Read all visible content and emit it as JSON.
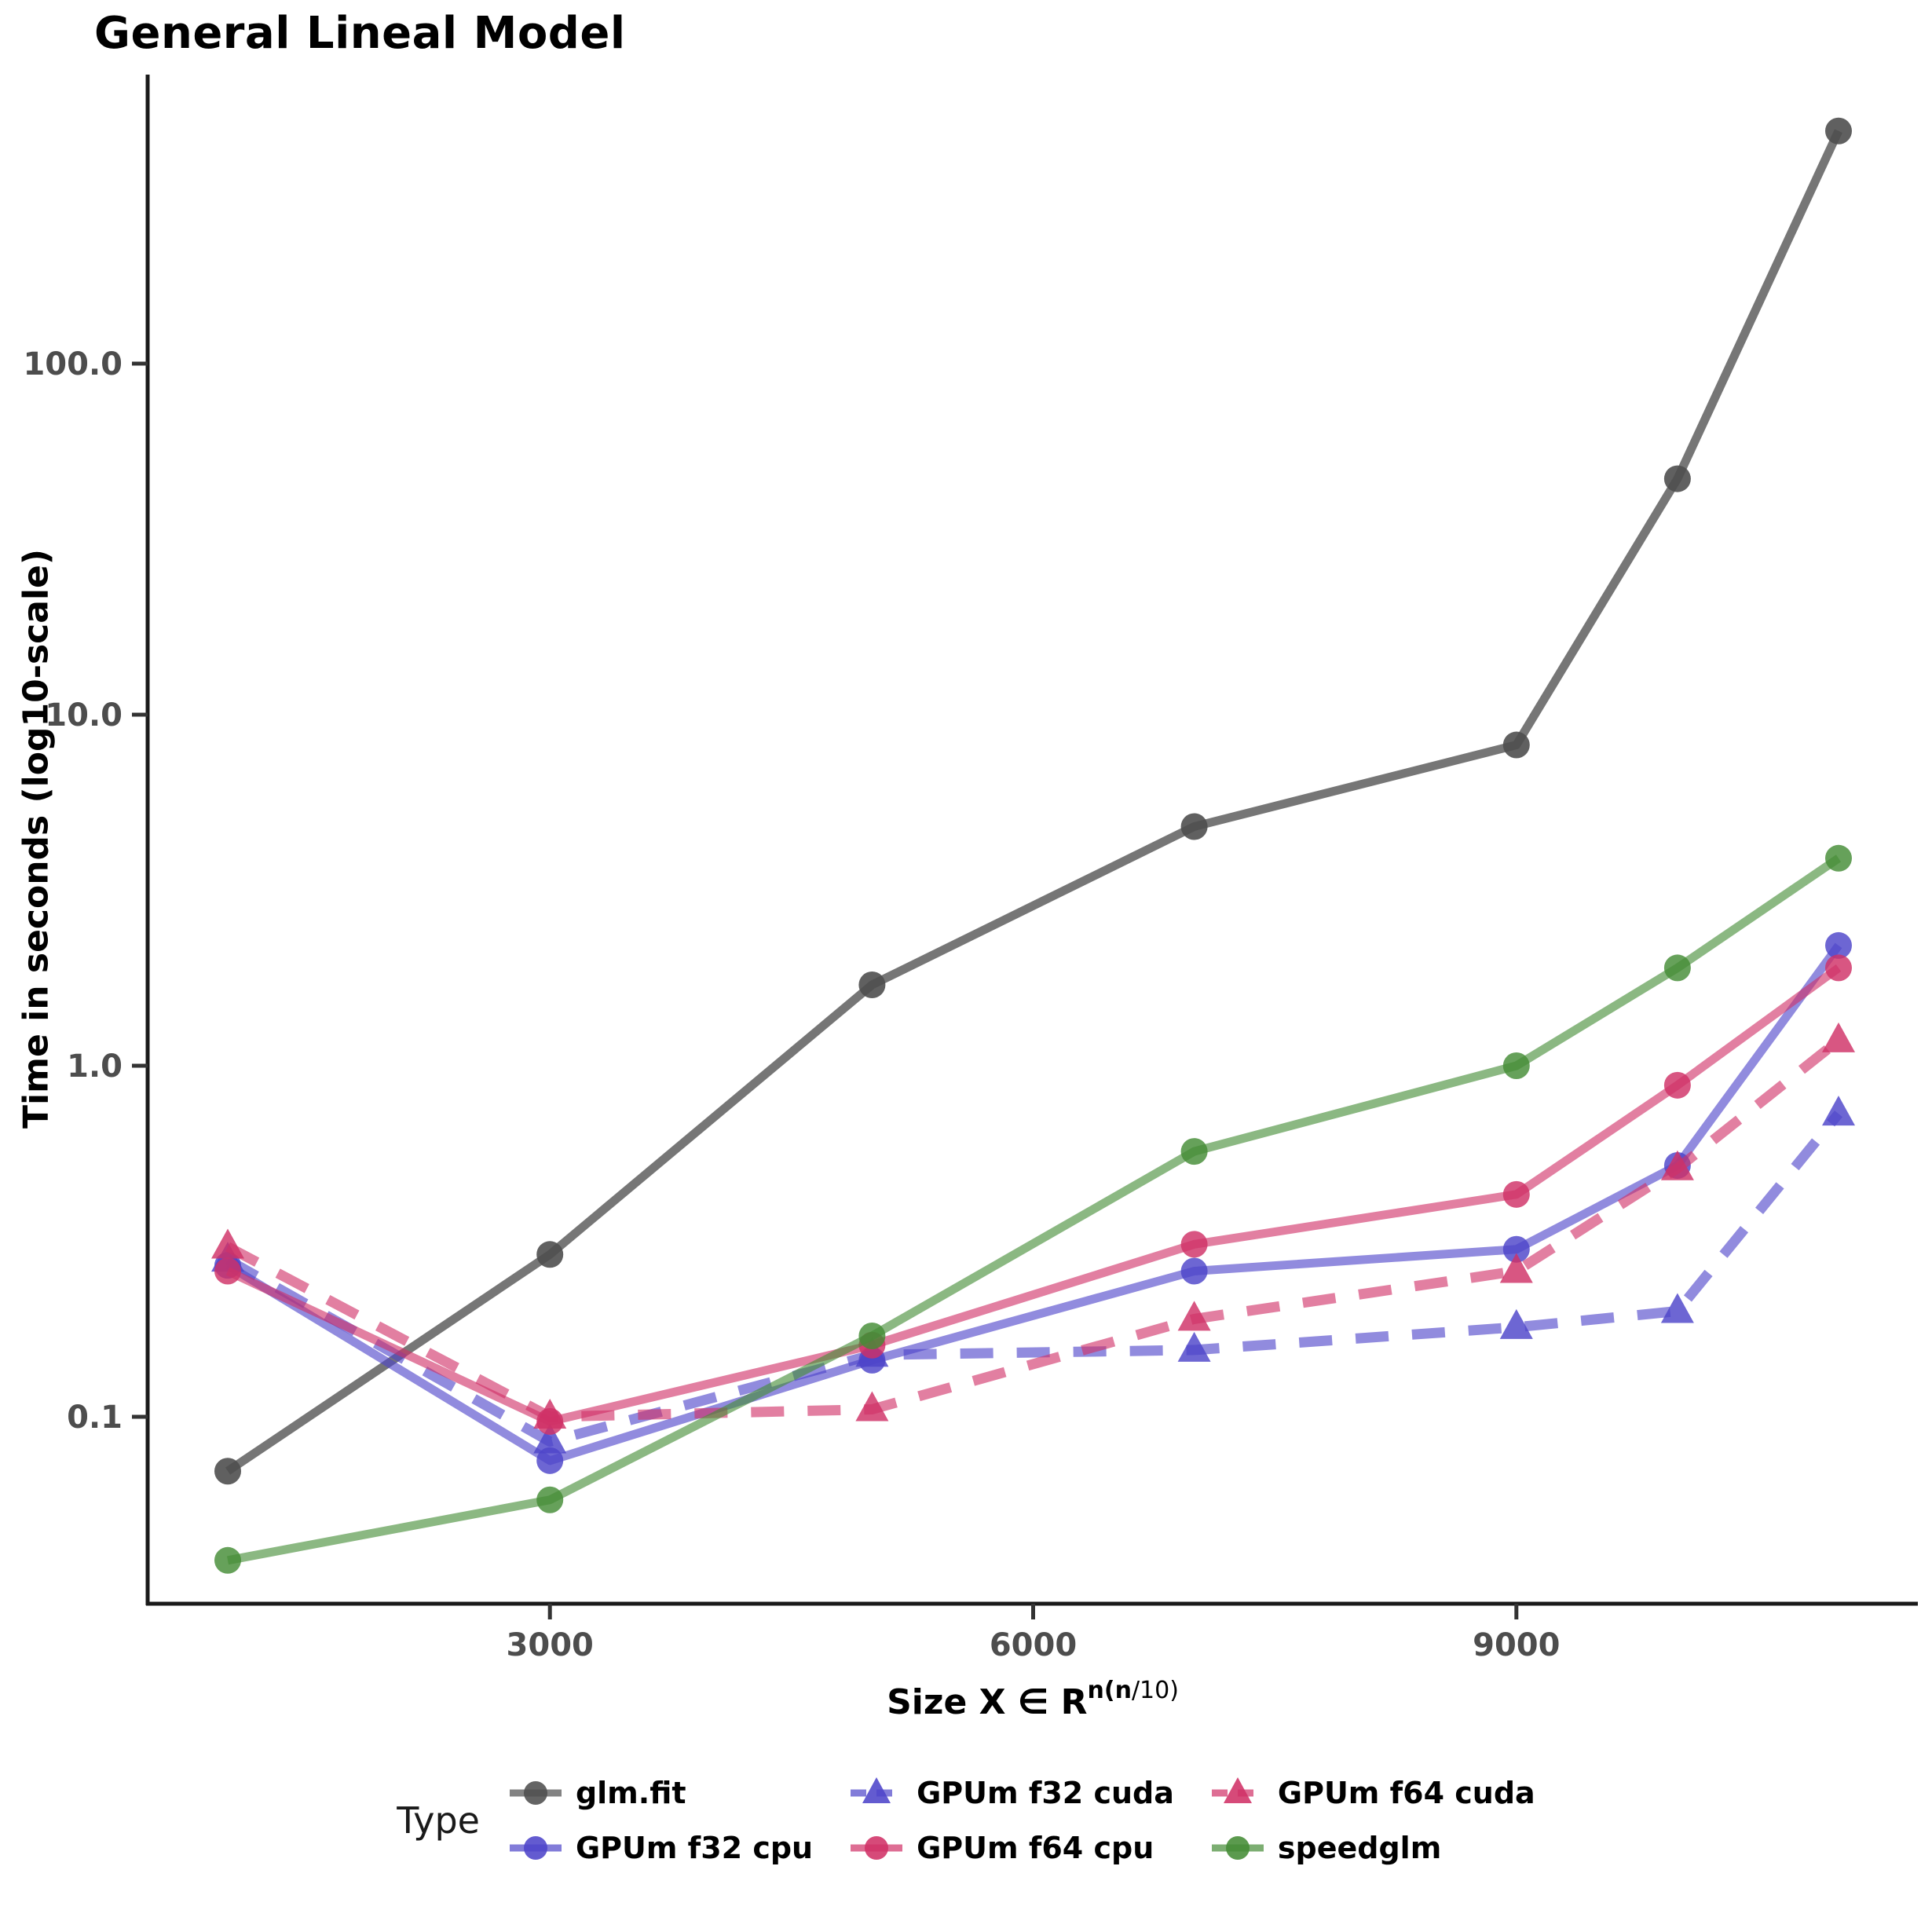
{
  "title": "General Lineal Model",
  "axes": {
    "y_label": "Time in seconds (log10-scale)",
    "x_label_prefix": "Size  X ∈ R",
    "x_label_sup_bold": "n(n",
    "x_label_sup_regular": "/10)",
    "y_tick_labels": [
      "100.0",
      "10.0",
      "1.0",
      "0.1"
    ],
    "x_tick_labels": [
      "3000",
      "6000",
      "9000"
    ]
  },
  "legend": {
    "title": "Type",
    "entries": [
      "glm.fit",
      "GPUm f32 cpu",
      "GPUm f32 cuda",
      "GPUm f64 cpu",
      "GPUm f64 cuda",
      "speedglm"
    ]
  },
  "chart_data": {
    "type": "line",
    "title": "General Lineal Model",
    "xlabel": "Size X ∈ R^(n(n/10))",
    "ylabel": "Time in seconds (log10-scale)",
    "y_scale": "log10",
    "x": [
      1000,
      3000,
      5000,
      7000,
      9000,
      10000,
      11000
    ],
    "x_tick_values": [
      3000,
      6000,
      9000
    ],
    "y_tick_values": [
      100,
      10,
      1,
      0.1
    ],
    "ylim": [
      0.03,
      650
    ],
    "legend_position": "bottom",
    "grid": false,
    "series": [
      {
        "name": "glm.fit",
        "marker": "circle",
        "dash": "solid",
        "color": "#4f4f4f",
        "values": [
          0.07,
          0.29,
          1.7,
          4.8,
          8.2,
          47,
          460
        ]
      },
      {
        "name": "GPUm f32 cpu",
        "marker": "circle",
        "dash": "solid",
        "color": "#4d44c9",
        "values": [
          0.27,
          0.075,
          0.145,
          0.26,
          0.3,
          0.52,
          2.2
        ]
      },
      {
        "name": "GPUm f32 cuda",
        "marker": "triangle",
        "dash": "dashed",
        "color": "#4d44c9",
        "values": [
          0.28,
          0.085,
          0.15,
          0.155,
          0.18,
          0.2,
          0.73
        ]
      },
      {
        "name": "GPUm f64 cpu",
        "marker": "circle",
        "dash": "solid",
        "color": "#d03167",
        "values": [
          0.26,
          0.097,
          0.16,
          0.31,
          0.43,
          0.88,
          1.9
        ]
      },
      {
        "name": "GPUm f64 cuda",
        "marker": "triangle",
        "dash": "dashed",
        "color": "#d03167",
        "values": [
          0.305,
          0.1,
          0.105,
          0.19,
          0.26,
          0.51,
          1.18
        ]
      },
      {
        "name": "speedglm",
        "marker": "circle",
        "dash": "solid",
        "color": "#448c36",
        "values": [
          0.039,
          0.058,
          0.17,
          0.57,
          1.0,
          1.9,
          3.9
        ]
      }
    ]
  }
}
